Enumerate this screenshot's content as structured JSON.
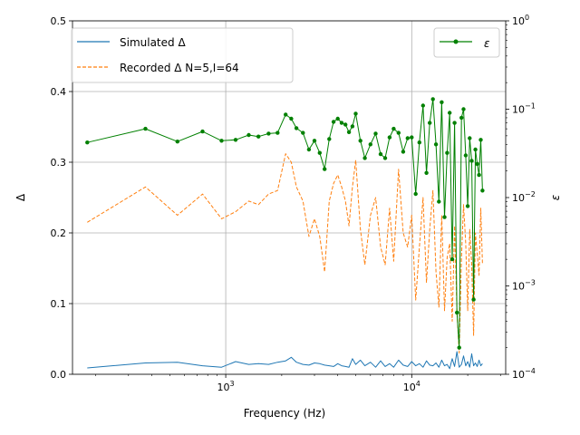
{
  "chart_data": {
    "type": "line",
    "xlabel": "Frequency (Hz)",
    "ylabel_left": "Δ",
    "ylabel_right": "ε",
    "xscale": "log",
    "xlim": [
      150,
      32000
    ],
    "ylim_left": [
      0,
      0.5
    ],
    "ylim_right": [
      0.0001,
      1
    ],
    "yscale_right": "log",
    "grid": true,
    "x_tick_labels": [
      {
        "value": 1000,
        "base": "10",
        "exp": "3"
      },
      {
        "value": 10000,
        "base": "10",
        "exp": "4"
      }
    ],
    "y_left_ticks": [
      "0.0",
      "0.1",
      "0.2",
      "0.3",
      "0.4",
      "0.5"
    ],
    "y_right_tick_labels": [
      {
        "value": 0.0001,
        "base": "10",
        "exp": "−4"
      },
      {
        "value": 0.001,
        "base": "10",
        "exp": "−3"
      },
      {
        "value": 0.01,
        "base": "10",
        "exp": "−2"
      },
      {
        "value": 0.1,
        "base": "10",
        "exp": "−1"
      },
      {
        "value": 1,
        "base": "10",
        "exp": "0"
      }
    ],
    "legend_left_placement": "upper-left",
    "legend_right_placement": "upper-right",
    "colors": {
      "simulated": "#1f77b4",
      "recorded": "#ff7f0e",
      "epsilon": "#008000"
    },
    "series": [
      {
        "name": "Simulated Δ",
        "axis": "left",
        "style": "solid",
        "x": [
          180,
          370,
          550,
          750,
          950,
          1130,
          1330,
          1500,
          1700,
          1900,
          2100,
          2250,
          2400,
          2600,
          2800,
          3000,
          3200,
          3400,
          3600,
          3800,
          4000,
          4200,
          4400,
          4600,
          4800,
          5000,
          5300,
          5600,
          6000,
          6400,
          6800,
          7200,
          7600,
          8000,
          8500,
          9000,
          9500,
          10000,
          10500,
          11000,
          11500,
          12000,
          12500,
          13000,
          13500,
          14000,
          14500,
          15000,
          15500,
          16000,
          16500,
          17000,
          17500,
          18000,
          18500,
          19000,
          19500,
          20000,
          20500,
          21000,
          21500,
          22000,
          22500,
          23000,
          23500,
          24000
        ],
        "values": [
          0.009,
          0.016,
          0.017,
          0.012,
          0.01,
          0.018,
          0.014,
          0.015,
          0.014,
          0.017,
          0.019,
          0.024,
          0.017,
          0.014,
          0.013,
          0.016,
          0.015,
          0.013,
          0.012,
          0.011,
          0.015,
          0.012,
          0.011,
          0.01,
          0.022,
          0.014,
          0.02,
          0.012,
          0.017,
          0.01,
          0.019,
          0.011,
          0.015,
          0.01,
          0.02,
          0.013,
          0.011,
          0.018,
          0.012,
          0.015,
          0.01,
          0.019,
          0.013,
          0.012,
          0.016,
          0.01,
          0.02,
          0.012,
          0.014,
          0.008,
          0.022,
          0.011,
          0.032,
          0.01,
          0.014,
          0.026,
          0.012,
          0.018,
          0.01,
          0.029,
          0.012,
          0.016,
          0.011,
          0.02,
          0.012,
          0.015
        ]
      },
      {
        "name": "Recorded Δ N=5,I=64",
        "axis": "left",
        "style": "dashed",
        "x": [
          180,
          370,
          550,
          750,
          950,
          1130,
          1330,
          1500,
          1700,
          1900,
          2100,
          2250,
          2400,
          2600,
          2800,
          3000,
          3200,
          3400,
          3600,
          3800,
          4000,
          4200,
          4400,
          4600,
          4800,
          5000,
          5300,
          5600,
          6000,
          6400,
          6800,
          7200,
          7600,
          8000,
          8500,
          9000,
          9500,
          10000,
          10500,
          11000,
          11500,
          12000,
          12500,
          13000,
          13500,
          14000,
          14500,
          15000,
          15500,
          16000,
          16500,
          17000,
          17500,
          18000,
          18500,
          19000,
          19500,
          20000,
          20500,
          21000,
          21500,
          22000,
          22500,
          23000,
          23500,
          24000
        ],
        "values": [
          0.215,
          0.265,
          0.225,
          0.255,
          0.22,
          0.23,
          0.245,
          0.24,
          0.255,
          0.26,
          0.312,
          0.3,
          0.265,
          0.245,
          0.195,
          0.22,
          0.195,
          0.145,
          0.245,
          0.27,
          0.282,
          0.265,
          0.245,
          0.21,
          0.265,
          0.303,
          0.205,
          0.155,
          0.225,
          0.25,
          0.18,
          0.155,
          0.235,
          0.16,
          0.29,
          0.2,
          0.18,
          0.225,
          0.105,
          0.18,
          0.25,
          0.13,
          0.205,
          0.26,
          0.145,
          0.095,
          0.225,
          0.09,
          0.165,
          0.185,
          0.075,
          0.21,
          0.09,
          0.03,
          0.165,
          0.24,
          0.185,
          0.09,
          0.205,
          0.155,
          0.055,
          0.2,
          0.17,
          0.14,
          0.235,
          0.155
        ]
      },
      {
        "name": "ε",
        "axis": "right",
        "style": "solid-markers",
        "x": [
          180,
          370,
          550,
          750,
          950,
          1130,
          1330,
          1500,
          1700,
          1900,
          2100,
          2250,
          2400,
          2600,
          2800,
          3000,
          3200,
          3400,
          3600,
          3800,
          4000,
          4200,
          4400,
          4600,
          4800,
          5000,
          5300,
          5600,
          6000,
          6400,
          6800,
          7200,
          7600,
          8000,
          8500,
          9000,
          9500,
          10000,
          10500,
          11000,
          11500,
          12000,
          12500,
          13000,
          13500,
          14000,
          14500,
          15000,
          15500,
          16000,
          16500,
          17000,
          17500,
          18000,
          18500,
          19000,
          19500,
          20000,
          20500,
          21000,
          21500,
          22000,
          22500,
          23000,
          23500,
          24000
        ],
        "values": [
          0.042,
          0.06,
          0.043,
          0.056,
          0.044,
          0.045,
          0.051,
          0.049,
          0.053,
          0.054,
          0.087,
          0.078,
          0.061,
          0.054,
          0.035,
          0.044,
          0.032,
          0.021,
          0.046,
          0.072,
          0.078,
          0.07,
          0.067,
          0.055,
          0.064,
          0.089,
          0.044,
          0.028,
          0.04,
          0.053,
          0.031,
          0.028,
          0.048,
          0.06,
          0.054,
          0.033,
          0.047,
          0.048,
          0.011,
          0.042,
          0.11,
          0.019,
          0.07,
          0.13,
          0.04,
          0.009,
          0.12,
          0.006,
          0.032,
          0.091,
          0.002,
          0.07,
          0.0005,
          0.0002,
          0.08,
          0.1,
          0.03,
          0.008,
          0.047,
          0.026,
          0.0007,
          0.035,
          0.024,
          0.018,
          0.045,
          0.012
        ]
      }
    ]
  }
}
